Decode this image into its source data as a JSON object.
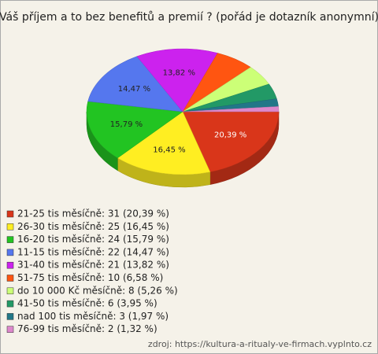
{
  "chart_data": {
    "type": "pie",
    "title": "Váš příjem a to bez benefitů a premií ? (pořád je dotazník anonymní)",
    "categories": [
      "21-25 tis měsíčně: 31 (20,39 %)",
      "26-30 tis měsíčně: 25 (16,45 %)",
      "16-20 tis měsíčně: 24 (15,79 %)",
      "11-15 tis měsíčně: 22 (14,47 %)",
      "31-40 tis měsíčně: 21 (13,82 %)",
      "51-75 tis měsíčně: 10 (6,58 %)",
      "do 10 000 Kč měsíčně: 8 (5,26 %)",
      "41-50 tis měsíčně: 6 (3,95 %)",
      "nad 100 tis měsíčně: 3 (1,97 %)",
      "76-99 tis měsíčně: 2 (1,32 %)"
    ],
    "values": [
      20.39,
      16.45,
      15.79,
      14.47,
      13.82,
      6.58,
      5.26,
      3.95,
      1.97,
      1.32
    ],
    "value_labels": [
      "20,39 %",
      "16,45 %",
      "15,79 %",
      "14,47 %",
      "13,82 %",
      null,
      null,
      null,
      null,
      null
    ],
    "colors": [
      "#d9361a",
      "#ffee22",
      "#22c422",
      "#5577ee",
      "#cc22ee",
      "#ff5511",
      "#ccff77",
      "#229966",
      "#227788",
      "#dd88cc"
    ],
    "source": "zdroj: https://kultura-a-ritualy-ve-firmach.vyplnto.cz"
  }
}
